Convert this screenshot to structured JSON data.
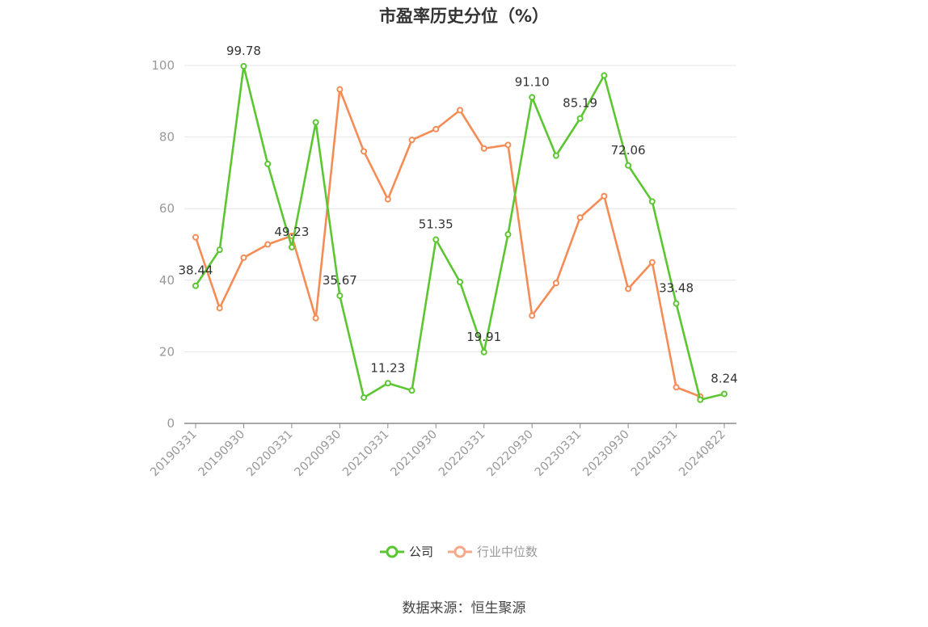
{
  "title": "市盈率历史分位（%）",
  "source": "数据来源：恒生聚源",
  "colors": {
    "company": "#5cc632",
    "industry": "#f58b55",
    "grid": "#e5e5e5",
    "axis": "#8c8c8c",
    "text": "#999999"
  },
  "legend": [
    {
      "label": "公司",
      "color": "#5cc632"
    },
    {
      "label": "行业中位数",
      "color": "#f5a988"
    }
  ],
  "chart_data": {
    "type": "line",
    "title": "市盈率历史分位（%）",
    "ylim": [
      0,
      100
    ],
    "yticks": [
      0,
      20,
      40,
      60,
      80,
      100
    ],
    "x_tick_labels": [
      "20190331",
      "20190930",
      "20200331",
      "20200930",
      "20210331",
      "20210930",
      "20220331",
      "20220930",
      "20230331",
      "20230930",
      "20240331",
      "20240822"
    ],
    "x": [
      "20190331",
      "20190630",
      "20190930",
      "20191231",
      "20200331",
      "20200630",
      "20200930",
      "20201231",
      "20210331",
      "20210630",
      "20210930",
      "20211231",
      "20220331",
      "20220630",
      "20220930",
      "20221231",
      "20230331",
      "20230630",
      "20230930",
      "20231231",
      "20240331",
      "20240630",
      "20240822"
    ],
    "series": [
      {
        "name": "公司",
        "values": [
          38.44,
          48.5,
          99.78,
          72.5,
          49.23,
          84.1,
          35.67,
          7.2,
          11.23,
          9.2,
          51.35,
          39.5,
          19.91,
          52.8,
          91.1,
          74.8,
          85.19,
          97.2,
          72.06,
          62.0,
          33.48,
          6.6,
          8.24
        ],
        "labels": {
          "0": "38.44",
          "2": "99.78",
          "4": "49.23",
          "6": "35.67",
          "8": "11.23",
          "10": "51.35",
          "12": "19.91",
          "14": "91.10",
          "16": "85.19",
          "18": "72.06",
          "20": "33.48",
          "22": "8.24"
        }
      },
      {
        "name": "行业中位数",
        "values": [
          52.0,
          32.2,
          46.3,
          50.0,
          52.4,
          29.4,
          93.3,
          76.0,
          62.6,
          79.2,
          82.2,
          87.5,
          76.8,
          77.8,
          30.1,
          39.2,
          57.5,
          63.5,
          37.6,
          45.0,
          10.1,
          7.5,
          null
        ]
      }
    ]
  }
}
